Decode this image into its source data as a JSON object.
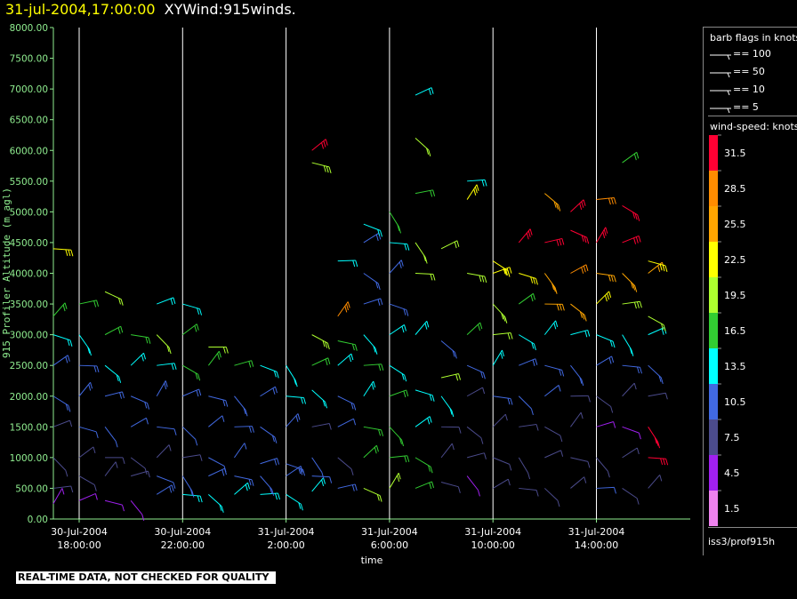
{
  "header": {
    "timestamp": "31-jul-2004,17:00:00",
    "title": "XYWind:915winds."
  },
  "colors": {
    "axis": "#90ee90",
    "grid": "#ffffff",
    "timestamp": "#ffff00",
    "speed_scale": [
      "#ee82ee",
      "#a020f0",
      "#4b4b8c",
      "#4169e1",
      "#00ffff",
      "#32cd32",
      "#adff2f",
      "#ffff00",
      "#ffa500",
      "#ff8c00",
      "#ff0033"
    ]
  },
  "legend": {
    "flags_title": "barb flags in knots",
    "flags": [
      "== 100",
      "== 50",
      "== 10",
      "== 5"
    ],
    "speed_title": "wind-speed: knots",
    "speed_labels": [
      "31.5",
      "28.5",
      "25.5",
      "22.5",
      "19.5",
      "16.5",
      "13.5",
      "10.5",
      "7.5",
      "4.5",
      "1.5"
    ]
  },
  "source": "iss3/prof915h",
  "warning": "REAL-TIME DATA, NOT CHECKED FOR QUALITY",
  "chart_data": {
    "type": "scatter",
    "title": "XYWind:915winds.",
    "xlabel": "time",
    "ylabel": "915 Profiler Altitude (m agl)",
    "ylim": [
      0,
      8000
    ],
    "y_ticks": [
      "0.00",
      "500.00",
      "1000.00",
      "1500.00",
      "2000.00",
      "2500.00",
      "3000.00",
      "3500.00",
      "4000.00",
      "4500.00",
      "5000.00",
      "5500.00",
      "6000.00",
      "6500.00",
      "7000.00",
      "7500.00",
      "8000.00"
    ],
    "x_ticks": [
      {
        "date": "30-Jul-2004",
        "time": "18:00:00"
      },
      {
        "date": "30-Jul-2004",
        "time": "22:00:00"
      },
      {
        "date": "31-Jul-2004",
        "time": "2:00:00"
      },
      {
        "date": "31-Jul-2004",
        "time": "6:00:00"
      },
      {
        "date": "31-Jul-2004",
        "time": "10:00:00"
      },
      {
        "date": "31-Jul-2004",
        "time": "14:00:00"
      }
    ],
    "grid": true,
    "profiles": [
      {
        "t": "30-Jul 17:00",
        "barbs": [
          [
            250,
            5
          ],
          [
            500,
            7
          ],
          [
            1000,
            6
          ],
          [
            1500,
            8
          ],
          [
            2000,
            10
          ],
          [
            2500,
            11
          ],
          [
            3000,
            13
          ],
          [
            3300,
            15
          ],
          [
            4400,
            22
          ]
        ]
      },
      {
        "t": "30-Jul 18:00",
        "barbs": [
          [
            300,
            5
          ],
          [
            700,
            6
          ],
          [
            1000,
            7
          ],
          [
            1500,
            9
          ],
          [
            2000,
            10
          ],
          [
            2500,
            11
          ],
          [
            3000,
            14
          ],
          [
            3500,
            17
          ]
        ]
      },
      {
        "t": "30-Jul 19:00",
        "barbs": [
          [
            300,
            4
          ],
          [
            700,
            6
          ],
          [
            1000,
            8
          ],
          [
            1500,
            9
          ],
          [
            2000,
            10
          ],
          [
            2500,
            12
          ],
          [
            3000,
            16
          ],
          [
            3700,
            19
          ]
        ]
      },
      {
        "t": "30-Jul 20:00",
        "barbs": [
          [
            300,
            5
          ],
          [
            700,
            7
          ],
          [
            1000,
            8
          ],
          [
            1500,
            9
          ],
          [
            2000,
            11
          ],
          [
            2500,
            12
          ],
          [
            3000,
            17
          ]
        ]
      },
      {
        "t": "30-Jul 21:00",
        "barbs": [
          [
            400,
            11
          ],
          [
            700,
            9
          ],
          [
            1000,
            8
          ],
          [
            1500,
            9
          ],
          [
            2000,
            10
          ],
          [
            2500,
            12
          ],
          [
            3000,
            18
          ],
          [
            3500,
            13
          ]
        ]
      },
      {
        "t": "30-Jul 22:00",
        "barbs": [
          [
            400,
            12
          ],
          [
            700,
            10
          ],
          [
            1000,
            8
          ],
          [
            1500,
            9
          ],
          [
            2000,
            10
          ],
          [
            2500,
            15
          ],
          [
            3000,
            17
          ],
          [
            3500,
            14
          ]
        ]
      },
      {
        "t": "30-Jul 23:00",
        "barbs": [
          [
            400,
            12
          ],
          [
            700,
            10
          ],
          [
            1000,
            9
          ],
          [
            1500,
            9
          ],
          [
            2000,
            10
          ],
          [
            2500,
            17
          ],
          [
            2800,
            18
          ]
        ]
      },
      {
        "t": "31-Jul 00:00",
        "barbs": [
          [
            400,
            12
          ],
          [
            700,
            10
          ],
          [
            1000,
            9
          ],
          [
            1500,
            10
          ],
          [
            2000,
            11
          ],
          [
            2500,
            15
          ]
        ]
      },
      {
        "t": "31-Jul 01:00",
        "barbs": [
          [
            400,
            12
          ],
          [
            700,
            10
          ],
          [
            900,
            10
          ],
          [
            1500,
            10
          ],
          [
            2000,
            11
          ],
          [
            2500,
            13
          ]
        ]
      },
      {
        "t": "31-Jul 02:00",
        "barbs": [
          [
            400,
            13
          ],
          [
            700,
            10
          ],
          [
            900,
            10
          ],
          [
            1500,
            10
          ],
          [
            2000,
            12
          ],
          [
            2500,
            14
          ]
        ]
      },
      {
        "t": "31-Jul 03:00",
        "barbs": [
          [
            450,
            12
          ],
          [
            700,
            9
          ],
          [
            1000,
            9
          ],
          [
            1500,
            8
          ],
          [
            2100,
            12
          ],
          [
            2500,
            16
          ],
          [
            3000,
            20
          ],
          [
            6000,
            30
          ],
          [
            5800,
            20
          ]
        ]
      },
      {
        "t": "31-Jul 04:00",
        "barbs": [
          [
            500,
            10
          ],
          [
            1000,
            7
          ],
          [
            1500,
            9
          ],
          [
            2000,
            11
          ],
          [
            2500,
            14
          ],
          [
            2900,
            17
          ],
          [
            3300,
            27
          ],
          [
            4200,
            12
          ]
        ]
      },
      {
        "t": "31-Jul 05:00",
        "barbs": [
          [
            500,
            19
          ],
          [
            1000,
            16
          ],
          [
            1500,
            16
          ],
          [
            2000,
            12
          ],
          [
            2500,
            17
          ],
          [
            3000,
            14
          ],
          [
            3500,
            11
          ],
          [
            4000,
            10
          ],
          [
            4500,
            11
          ],
          [
            4800,
            12
          ]
        ]
      },
      {
        "t": "31-Jul 06:00",
        "barbs": [
          [
            500,
            18
          ],
          [
            1000,
            17
          ],
          [
            1500,
            16
          ],
          [
            2000,
            15
          ],
          [
            2500,
            14
          ],
          [
            3000,
            13
          ],
          [
            3500,
            11
          ],
          [
            4000,
            10
          ],
          [
            4500,
            12
          ],
          [
            5000,
            16
          ]
        ]
      },
      {
        "t": "31-Jul 07:00",
        "barbs": [
          [
            500,
            16
          ],
          [
            1000,
            15
          ],
          [
            1500,
            14
          ],
          [
            2100,
            13
          ],
          [
            3000,
            12
          ],
          [
            4000,
            18
          ],
          [
            4500,
            19
          ],
          [
            5300,
            17
          ],
          [
            6200,
            18
          ],
          [
            6900,
            13
          ]
        ]
      },
      {
        "t": "31-Jul 08:00",
        "barbs": [
          [
            600,
            6
          ],
          [
            1000,
            6
          ],
          [
            1500,
            7
          ],
          [
            2000,
            12
          ],
          [
            2300,
            18
          ],
          [
            2900,
            10
          ],
          [
            4400,
            19
          ]
        ]
      },
      {
        "t": "31-Jul 09:00",
        "barbs": [
          [
            700,
            5
          ],
          [
            1000,
            6
          ],
          [
            1500,
            7
          ],
          [
            2000,
            8
          ],
          [
            2500,
            10
          ],
          [
            3000,
            16
          ],
          [
            4000,
            20
          ],
          [
            5200,
            21
          ],
          [
            5500,
            13
          ]
        ]
      },
      {
        "t": "31-Jul 10:00",
        "barbs": [
          [
            500,
            7
          ],
          [
            1000,
            6
          ],
          [
            1500,
            7
          ],
          [
            2000,
            10
          ],
          [
            2500,
            12
          ],
          [
            3000,
            18
          ],
          [
            3500,
            20
          ],
          [
            4000,
            21
          ],
          [
            4200,
            22
          ]
        ]
      },
      {
        "t": "31-Jul 11:00",
        "barbs": [
          [
            500,
            8
          ],
          [
            1000,
            7
          ],
          [
            1500,
            6
          ],
          [
            2000,
            9
          ],
          [
            2500,
            10
          ],
          [
            3000,
            12
          ],
          [
            3500,
            17
          ],
          [
            4000,
            22
          ],
          [
            4500,
            31
          ]
        ]
      },
      {
        "t": "31-Jul 12:00",
        "barbs": [
          [
            500,
            7
          ],
          [
            1000,
            6
          ],
          [
            1500,
            7
          ],
          [
            2000,
            9
          ],
          [
            2500,
            11
          ],
          [
            3000,
            12
          ],
          [
            3500,
            25
          ],
          [
            4000,
            26
          ],
          [
            4500,
            30
          ],
          [
            5300,
            26
          ]
        ]
      },
      {
        "t": "31-Jul 13:00",
        "barbs": [
          [
            500,
            8
          ],
          [
            1000,
            6
          ],
          [
            1500,
            6
          ],
          [
            2000,
            8
          ],
          [
            2500,
            10
          ],
          [
            3000,
            13
          ],
          [
            3500,
            25
          ],
          [
            4000,
            28
          ],
          [
            4700,
            31
          ],
          [
            5000,
            30
          ]
        ]
      },
      {
        "t": "31-Jul 14:00",
        "barbs": [
          [
            500,
            9
          ],
          [
            1000,
            6
          ],
          [
            1500,
            5
          ],
          [
            2000,
            7
          ],
          [
            2500,
            10
          ],
          [
            3000,
            12
          ],
          [
            3500,
            22
          ],
          [
            4000,
            26
          ],
          [
            4500,
            31
          ],
          [
            5200,
            28
          ]
        ]
      },
      {
        "t": "31-Jul 15:00",
        "barbs": [
          [
            500,
            8
          ],
          [
            1000,
            6
          ],
          [
            1500,
            5
          ],
          [
            2000,
            8
          ],
          [
            2500,
            10
          ],
          [
            3000,
            14
          ],
          [
            3500,
            20
          ],
          [
            4000,
            25
          ],
          [
            4500,
            31
          ],
          [
            5100,
            31
          ],
          [
            5800,
            17
          ]
        ]
      },
      {
        "t": "31-Jul 16:00",
        "barbs": [
          [
            500,
            7
          ],
          [
            1000,
            31
          ],
          [
            1500,
            30
          ],
          [
            2000,
            8
          ],
          [
            2500,
            10
          ],
          [
            3000,
            12
          ],
          [
            3300,
            19
          ],
          [
            4000,
            24
          ],
          [
            4200,
            22
          ]
        ]
      }
    ]
  }
}
